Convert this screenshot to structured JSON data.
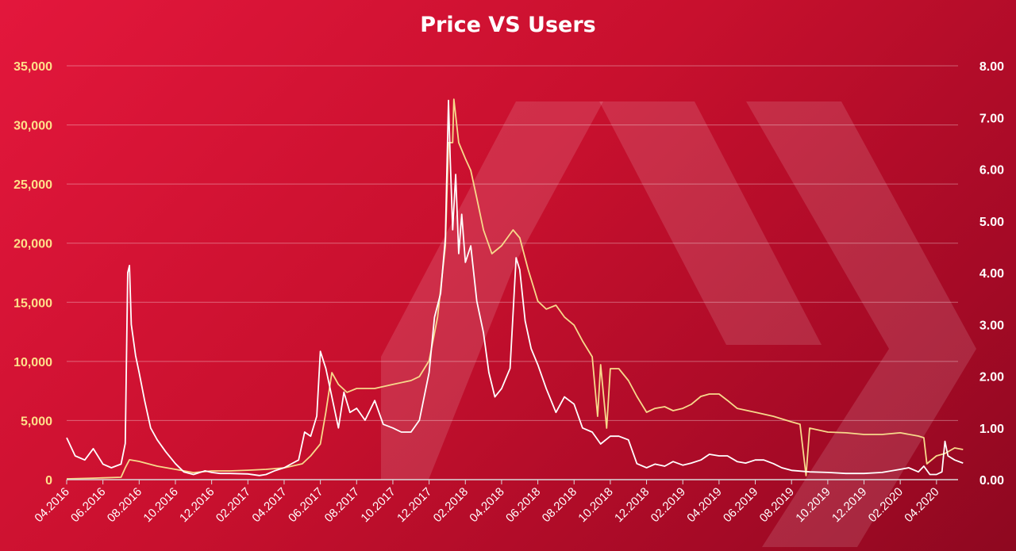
{
  "chart_data": {
    "type": "line",
    "title": "Price VS Users",
    "left_axis": {
      "ticks": [
        "0",
        "5,000",
        "10,000",
        "15,000",
        "20,000",
        "25,000",
        "30,000",
        "35,000"
      ],
      "range": [
        0,
        35000
      ],
      "color": "#ffe08a"
    },
    "right_axis": {
      "ticks": [
        "0.00",
        "1.00",
        "2.00",
        "3.00",
        "4.00",
        "5.00",
        "6.00",
        "7.00",
        "8.00"
      ],
      "range": [
        0,
        8
      ],
      "color": "#ffffff"
    },
    "x_ticks": [
      "04.2016",
      "06.2016",
      "08.2016",
      "10.2016",
      "12.2016",
      "02.2017",
      "04.2017",
      "06.2017",
      "08.2017",
      "10.2017",
      "12.2017",
      "02.2018",
      "04.2018",
      "06.2018",
      "08.2018",
      "10.2018",
      "12.2018",
      "02.2019",
      "04.2019",
      "06.2019",
      "08.2019",
      "10.2019",
      "12.2019",
      "02.2020",
      "04.2020"
    ],
    "grid": true,
    "colors": {
      "background": "#c8102e",
      "price_line": "#ffffff",
      "users_line": "#f7d98b"
    },
    "series": [
      {
        "axis": "right",
        "color": "#ffffff",
        "points": [
          [
            "2016-04-01",
            0.81
          ],
          [
            "2016-04-15",
            0.46
          ],
          [
            "2016-05-01",
            0.38
          ],
          [
            "2016-05-15",
            0.6
          ],
          [
            "2016-06-01",
            0.3
          ],
          [
            "2016-06-15",
            0.23
          ],
          [
            "2016-07-01",
            0.3
          ],
          [
            "2016-07-08",
            0.7
          ],
          [
            "2016-07-12",
            4.0
          ],
          [
            "2016-07-15",
            4.14
          ],
          [
            "2016-07-18",
            3.0
          ],
          [
            "2016-07-25",
            2.4
          ],
          [
            "2016-08-01",
            2.07
          ],
          [
            "2016-08-10",
            1.53
          ],
          [
            "2016-08-20",
            1.0
          ],
          [
            "2016-09-01",
            0.77
          ],
          [
            "2016-09-15",
            0.54
          ],
          [
            "2016-10-01",
            0.31
          ],
          [
            "2016-10-15",
            0.15
          ],
          [
            "2016-11-01",
            0.1
          ],
          [
            "2016-11-20",
            0.17
          ],
          [
            "2016-12-01",
            0.14
          ],
          [
            "2016-12-15",
            0.12
          ],
          [
            "2017-01-01",
            0.12
          ],
          [
            "2017-02-01",
            0.11
          ],
          [
            "2017-02-20",
            0.08
          ],
          [
            "2017-03-01",
            0.1
          ],
          [
            "2017-03-15",
            0.17
          ],
          [
            "2017-04-01",
            0.23
          ],
          [
            "2017-04-25",
            0.38
          ],
          [
            "2017-05-05",
            0.92
          ],
          [
            "2017-05-15",
            0.84
          ],
          [
            "2017-05-25",
            1.23
          ],
          [
            "2017-06-01",
            2.48
          ],
          [
            "2017-06-10",
            2.15
          ],
          [
            "2017-06-20",
            1.6
          ],
          [
            "2017-07-01",
            1.0
          ],
          [
            "2017-07-10",
            1.69
          ],
          [
            "2017-07-20",
            1.3
          ],
          [
            "2017-08-01",
            1.38
          ],
          [
            "2017-08-15",
            1.15
          ],
          [
            "2017-09-01",
            1.53
          ],
          [
            "2017-09-15",
            1.07
          ],
          [
            "2017-10-01",
            1.0
          ],
          [
            "2017-10-15",
            0.92
          ],
          [
            "2017-11-01",
            0.92
          ],
          [
            "2017-11-15",
            1.15
          ],
          [
            "2017-12-01",
            2.07
          ],
          [
            "2017-12-10",
            3.14
          ],
          [
            "2017-12-20",
            3.6
          ],
          [
            "2017-12-28",
            4.67
          ],
          [
            "2018-01-03",
            7.33
          ],
          [
            "2018-01-06",
            6.2
          ],
          [
            "2018-01-10",
            4.83
          ],
          [
            "2018-01-15",
            5.9
          ],
          [
            "2018-01-20",
            4.37
          ],
          [
            "2018-01-25",
            5.13
          ],
          [
            "2018-02-01",
            4.2
          ],
          [
            "2018-02-10",
            4.52
          ],
          [
            "2018-02-20",
            3.45
          ],
          [
            "2018-03-01",
            2.84
          ],
          [
            "2018-03-10",
            2.07
          ],
          [
            "2018-03-20",
            1.6
          ],
          [
            "2018-04-01",
            1.76
          ],
          [
            "2018-04-15",
            2.15
          ],
          [
            "2018-04-25",
            4.29
          ],
          [
            "2018-05-01",
            4.06
          ],
          [
            "2018-05-10",
            3.07
          ],
          [
            "2018-05-20",
            2.53
          ],
          [
            "2018-06-01",
            2.22
          ],
          [
            "2018-06-15",
            1.76
          ],
          [
            "2018-07-01",
            1.3
          ],
          [
            "2018-07-15",
            1.6
          ],
          [
            "2018-08-01",
            1.46
          ],
          [
            "2018-08-15",
            1.0
          ],
          [
            "2018-09-01",
            0.92
          ],
          [
            "2018-09-15",
            0.69
          ],
          [
            "2018-10-01",
            0.84
          ],
          [
            "2018-10-15",
            0.84
          ],
          [
            "2018-11-01",
            0.77
          ],
          [
            "2018-11-15",
            0.31
          ],
          [
            "2018-12-01",
            0.23
          ],
          [
            "2018-12-15",
            0.3
          ],
          [
            "2019-01-01",
            0.26
          ],
          [
            "2019-01-15",
            0.35
          ],
          [
            "2019-02-01",
            0.28
          ],
          [
            "2019-02-15",
            0.32
          ],
          [
            "2019-03-01",
            0.38
          ],
          [
            "2019-03-15",
            0.49
          ],
          [
            "2019-04-01",
            0.46
          ],
          [
            "2019-04-15",
            0.46
          ],
          [
            "2019-05-01",
            0.35
          ],
          [
            "2019-05-15",
            0.32
          ],
          [
            "2019-06-01",
            0.38
          ],
          [
            "2019-06-15",
            0.38
          ],
          [
            "2019-07-01",
            0.31
          ],
          [
            "2019-07-15",
            0.23
          ],
          [
            "2019-08-01",
            0.18
          ],
          [
            "2019-09-01",
            0.15
          ],
          [
            "2019-10-01",
            0.14
          ],
          [
            "2019-11-01",
            0.12
          ],
          [
            "2019-12-01",
            0.12
          ],
          [
            "2020-01-01",
            0.14
          ],
          [
            "2020-02-01",
            0.2
          ],
          [
            "2020-02-15",
            0.23
          ],
          [
            "2020-03-01",
            0.15
          ],
          [
            "2020-03-10",
            0.26
          ],
          [
            "2020-03-20",
            0.1
          ],
          [
            "2020-04-01",
            0.1
          ],
          [
            "2020-04-10",
            0.15
          ],
          [
            "2020-04-15",
            0.74
          ],
          [
            "2020-04-20",
            0.46
          ],
          [
            "2020-05-01",
            0.38
          ],
          [
            "2020-05-15",
            0.32
          ]
        ]
      },
      {
        "axis": "left",
        "color": "#f7d98b",
        "points": [
          [
            "2016-04-01",
            70
          ],
          [
            "2016-05-15",
            130
          ],
          [
            "2016-07-01",
            200
          ],
          [
            "2016-07-08",
            1000
          ],
          [
            "2016-07-15",
            1680
          ],
          [
            "2016-08-01",
            1540
          ],
          [
            "2016-09-01",
            1140
          ],
          [
            "2016-10-01",
            870
          ],
          [
            "2016-11-01",
            600
          ],
          [
            "2016-12-01",
            740
          ],
          [
            "2017-01-01",
            740
          ],
          [
            "2017-02-01",
            800
          ],
          [
            "2017-03-01",
            870
          ],
          [
            "2017-04-01",
            1000
          ],
          [
            "2017-05-01",
            1340
          ],
          [
            "2017-05-15",
            2010
          ],
          [
            "2017-06-01",
            3020
          ],
          [
            "2017-06-10",
            5700
          ],
          [
            "2017-06-20",
            9050
          ],
          [
            "2017-07-01",
            8050
          ],
          [
            "2017-07-15",
            7380
          ],
          [
            "2017-08-01",
            7710
          ],
          [
            "2017-09-01",
            7710
          ],
          [
            "2017-10-01",
            8050
          ],
          [
            "2017-11-01",
            8380
          ],
          [
            "2017-11-15",
            8720
          ],
          [
            "2017-12-01",
            10060
          ],
          [
            "2017-12-15",
            13750
          ],
          [
            "2017-12-28",
            19780
          ],
          [
            "2018-01-03",
            28500
          ],
          [
            "2018-01-10",
            28500
          ],
          [
            "2018-01-12",
            32180
          ],
          [
            "2018-01-20",
            28500
          ],
          [
            "2018-02-01",
            27150
          ],
          [
            "2018-02-10",
            26150
          ],
          [
            "2018-02-20",
            23800
          ],
          [
            "2018-03-01",
            21120
          ],
          [
            "2018-03-15",
            19110
          ],
          [
            "2018-04-01",
            19780
          ],
          [
            "2018-04-20",
            21120
          ],
          [
            "2018-05-01",
            20450
          ],
          [
            "2018-05-15",
            17770
          ],
          [
            "2018-06-01",
            15090
          ],
          [
            "2018-06-15",
            14420
          ],
          [
            "2018-07-01",
            14750
          ],
          [
            "2018-07-15",
            13750
          ],
          [
            "2018-08-01",
            13070
          ],
          [
            "2018-08-15",
            11730
          ],
          [
            "2018-09-01",
            10390
          ],
          [
            "2018-09-10",
            5360
          ],
          [
            "2018-09-15",
            9720
          ],
          [
            "2018-09-25",
            4360
          ],
          [
            "2018-10-01",
            9390
          ],
          [
            "2018-10-15",
            9390
          ],
          [
            "2018-11-01",
            8380
          ],
          [
            "2018-11-15",
            7040
          ],
          [
            "2018-12-01",
            5700
          ],
          [
            "2018-12-15",
            6030
          ],
          [
            "2019-01-01",
            6170
          ],
          [
            "2019-01-15",
            5830
          ],
          [
            "2019-02-01",
            6030
          ],
          [
            "2019-02-15",
            6370
          ],
          [
            "2019-03-01",
            7040
          ],
          [
            "2019-03-15",
            7240
          ],
          [
            "2019-04-01",
            7240
          ],
          [
            "2019-04-15",
            6700
          ],
          [
            "2019-05-01",
            6030
          ],
          [
            "2019-06-01",
            5700
          ],
          [
            "2019-07-01",
            5360
          ],
          [
            "2019-08-01",
            4890
          ],
          [
            "2019-08-15",
            4690
          ],
          [
            "2019-08-25",
            340
          ],
          [
            "2019-09-01",
            4360
          ],
          [
            "2019-10-01",
            4020
          ],
          [
            "2019-11-01",
            3960
          ],
          [
            "2019-12-01",
            3820
          ],
          [
            "2020-01-01",
            3820
          ],
          [
            "2020-02-01",
            3960
          ],
          [
            "2020-03-01",
            3690
          ],
          [
            "2020-03-10",
            3550
          ],
          [
            "2020-03-15",
            1340
          ],
          [
            "2020-04-01",
            2010
          ],
          [
            "2020-04-15",
            2210
          ],
          [
            "2020-05-01",
            2680
          ],
          [
            "2020-05-15",
            2550
          ]
        ]
      }
    ]
  }
}
